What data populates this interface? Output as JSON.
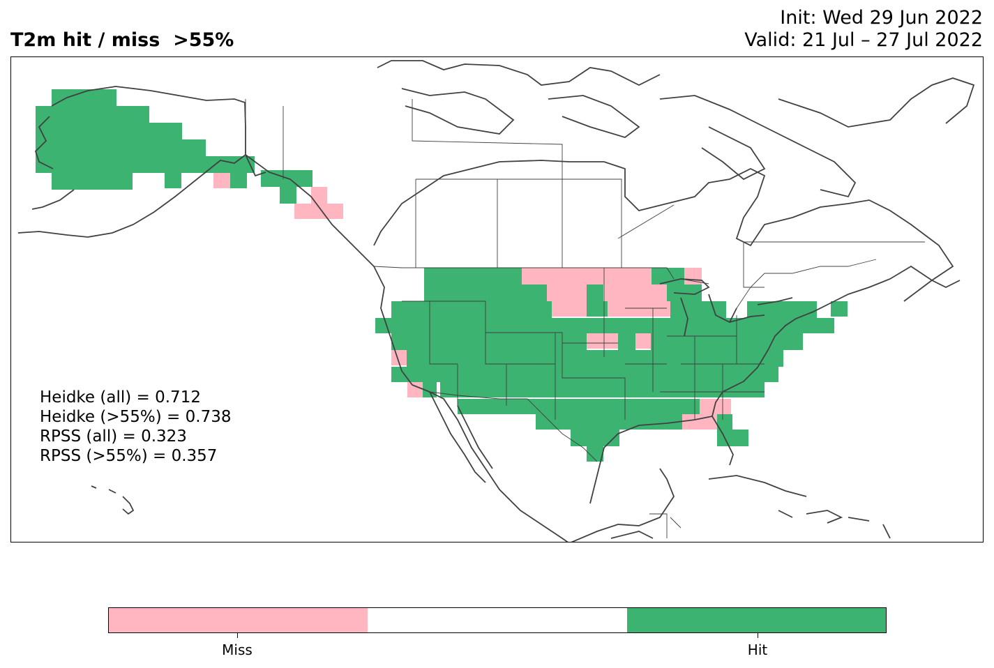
{
  "title": {
    "left": "T2m hit / miss  >55%",
    "init": "Init: Wed 29 Jun 2022",
    "valid": "Valid: 21 Jul – 27 Jul 2022"
  },
  "stats": [
    "Heidke (all) = 0.712",
    "Heidke (>55%) = 0.738",
    "RPSS (all) = 0.323",
    "RPSS (>55%) = 0.357"
  ],
  "legend": {
    "categories": [
      "Miss",
      "",
      "Hit"
    ],
    "colors": {
      "miss": "#FFB6C1",
      "neutral": "#FFFFFF",
      "hit": "#3CB371"
    }
  },
  "map_colors": {
    "coast": "#404040",
    "hit": "#3CB371",
    "miss": "#FFB6C1"
  }
}
